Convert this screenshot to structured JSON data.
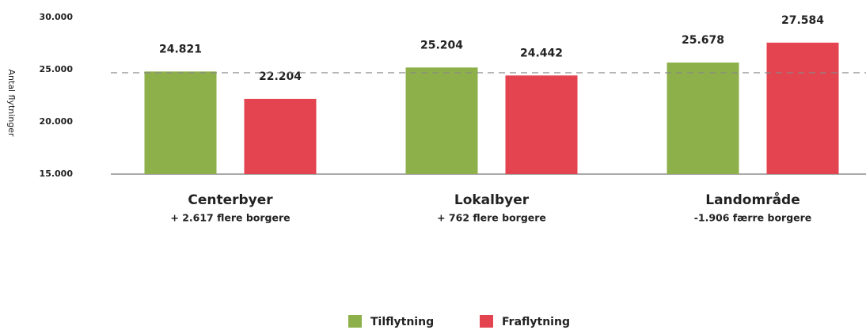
{
  "chart_data": {
    "type": "bar",
    "y_axis_label": "Antal flytninger",
    "categories": [
      "Centerbyer",
      "Lokalbyer",
      "Landområde"
    ],
    "category_notes": [
      "+ 2.617 flere borgere",
      "+ 762 flere borgere",
      "-1.906 færre borgere"
    ],
    "series": [
      {
        "name": "Tilflytning",
        "color": "#8db04a",
        "values": [
          24821,
          25204,
          25678
        ],
        "value_labels": [
          "24.821",
          "25.204",
          "25.678"
        ]
      },
      {
        "name": "Fraflytning",
        "color": "#e3444f",
        "values": [
          22204,
          24442,
          27584
        ],
        "value_labels": [
          "22.204",
          "24.442",
          "27.584"
        ]
      }
    ],
    "reference_line": 24700,
    "ylim": [
      15000,
      30000
    ],
    "yticks": [
      {
        "value": 15000,
        "label": "15.000"
      },
      {
        "value": 20000,
        "label": "20.000"
      },
      {
        "value": 25000,
        "label": "25.000"
      },
      {
        "value": 30000,
        "label": "30.000"
      }
    ],
    "legend": "bottom"
  }
}
